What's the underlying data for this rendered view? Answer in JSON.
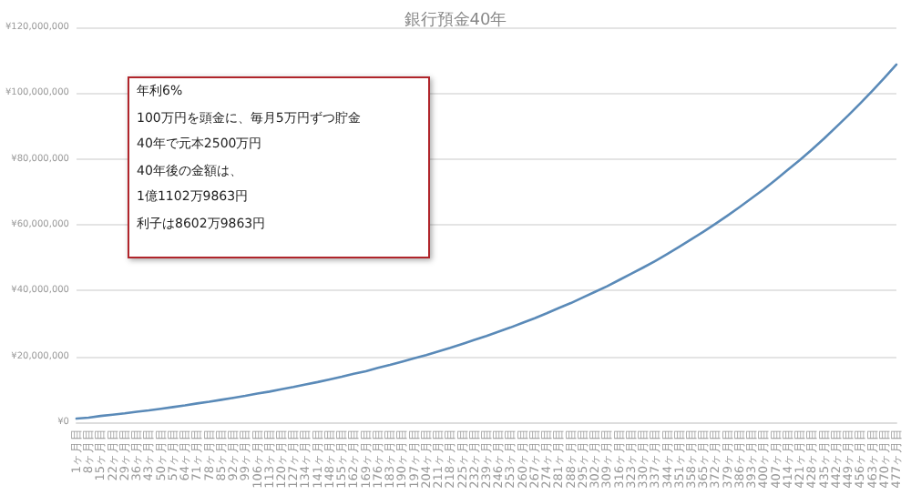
{
  "chart_data": {
    "type": "line",
    "title": "銀行預金40年",
    "categories": [
      "1ヶ月目",
      "8ヶ月目",
      "15ヶ月目",
      "22ヶ月目",
      "29ヶ月目",
      "36ヶ月目",
      "43ヶ月目",
      "50ヶ月目",
      "57ヶ月目",
      "64ヶ月目",
      "71ヶ月目",
      "78ヶ月目",
      "85ヶ月目",
      "92ヶ月目",
      "99ヶ月目",
      "106ヶ月目",
      "113ヶ月目",
      "120ヶ月目",
      "127ヶ月目",
      "134ヶ月目",
      "141ヶ月目",
      "148ヶ月目",
      "155ヶ月目",
      "162ヶ月目",
      "169ヶ月目",
      "176ヶ月目",
      "183ヶ月目",
      "190ヶ月目",
      "197ヶ月目",
      "204ヶ月目",
      "211ヶ月目",
      "218ヶ月目",
      "225ヶ月目",
      "232ヶ月目",
      "239ヶ月目",
      "246ヶ月目",
      "253ヶ月目",
      "260ヶ月目",
      "267ヶ月目",
      "274ヶ月目",
      "281ヶ月目",
      "288ヶ月目",
      "295ヶ月目",
      "302ヶ月目",
      "309ヶ月目",
      "316ヶ月目",
      "323ヶ月目",
      "330ヶ月目",
      "337ヶ月目",
      "344ヶ月目",
      "351ヶ月目",
      "358ヶ月目",
      "365ヶ月目",
      "372ヶ月目",
      "379ヶ月目",
      "386ヶ月目",
      "393ヶ月目",
      "400ヶ月目",
      "407ヶ月目",
      "414ヶ月目",
      "421ヶ月目",
      "428ヶ月目",
      "435ヶ月目",
      "442ヶ月目",
      "449ヶ月目",
      "456ヶ月目",
      "463ヶ月目",
      "470ヶ月目",
      "477ヶ月目"
    ],
    "series": [
      {
        "color": "#5a8ab8",
        "values": [
          1100000,
          1400000,
          1900000,
          2300000,
          2700000,
          3200000,
          3600000,
          4100000,
          4600000,
          5100000,
          5700000,
          6200000,
          6800000,
          7400000,
          8000000,
          8700000,
          9300000,
          10000000,
          10700000,
          11500000,
          12200000,
          13000000,
          13800000,
          14700000,
          15500000,
          16500000,
          17400000,
          18400000,
          19400000,
          20400000,
          21500000,
          22600000,
          23800000,
          25000000,
          26200000,
          27500000,
          28800000,
          30200000,
          31600000,
          33100000,
          34700000,
          36200000,
          37900000,
          39600000,
          41300000,
          43200000,
          45100000,
          47000000,
          49000000,
          51100000,
          53300000,
          55600000,
          57900000,
          60300000,
          62800000,
          65400000,
          68100000,
          70800000,
          73700000,
          76700000,
          79700000,
          82900000,
          86200000,
          89700000,
          93200000,
          96900000,
          100700000,
          104600000,
          108700000
        ]
      }
    ],
    "ylim": [
      0,
      120000000
    ],
    "yticks": [
      {
        "value": 0,
        "label": "¥0"
      },
      {
        "value": 20000000,
        "label": "¥20,000,000"
      },
      {
        "value": 40000000,
        "label": "¥40,000,000"
      },
      {
        "value": 60000000,
        "label": "¥60,000,000"
      },
      {
        "value": 80000000,
        "label": "¥80,000,000"
      },
      {
        "value": 100000000,
        "label": "¥100,000,000"
      },
      {
        "value": 120000000,
        "label": "¥120,000,000"
      }
    ],
    "grid": "y",
    "marker": "none",
    "line_style": "solid",
    "annotations": [
      "年利6%",
      "100万円を頭金に、毎月5万円ずつ貯金",
      "40年で元本2500万円",
      "40年後の金額は、",
      "1億1102万9863円",
      "利子は8602万9863円"
    ]
  }
}
